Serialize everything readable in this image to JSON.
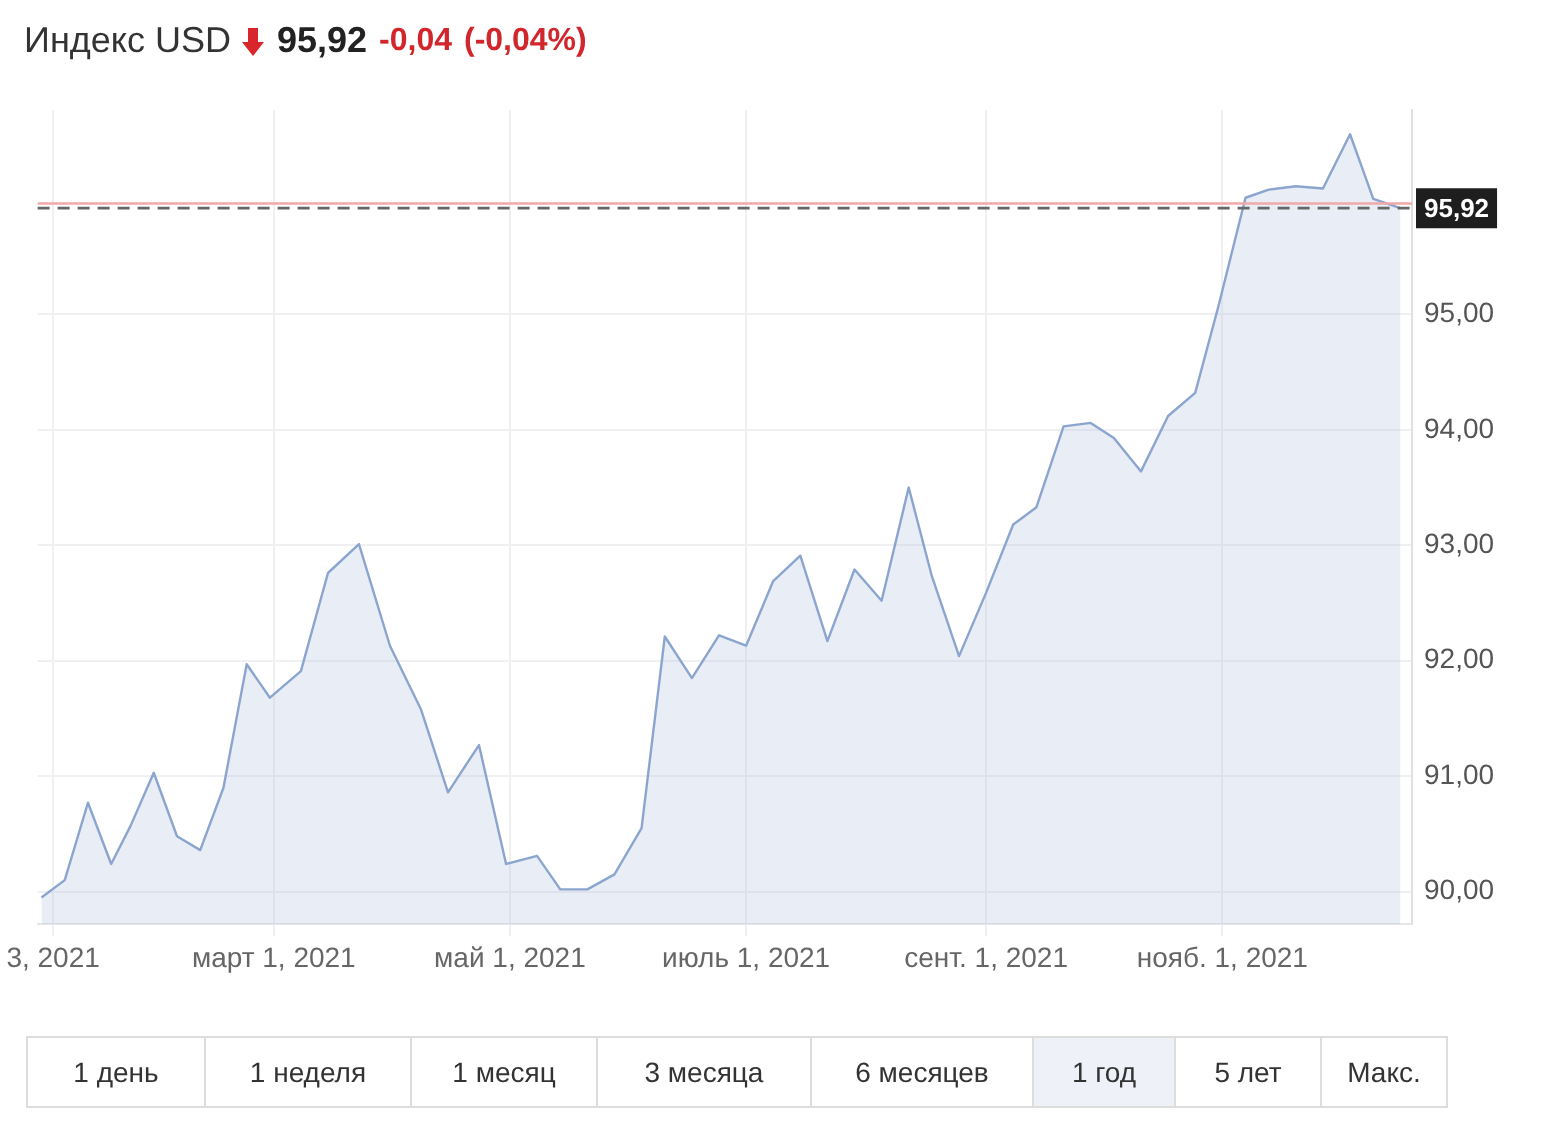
{
  "chart_data": {
    "type": "area",
    "title": "Индекс USD",
    "annotations": [
      "95,92",
      "-0,04",
      "(-0,04%)",
      "1 день",
      "1 неделя",
      "1 месяц",
      "3 месяца",
      "6 месяцев",
      "1 год",
      "5 лет",
      "Макс."
    ],
    "x": [
      "2020-12-31",
      "2021-01-06",
      "2021-01-12",
      "2021-01-18",
      "2021-01-23",
      "2021-01-29",
      "2021-02-04",
      "2021-02-10",
      "2021-02-16",
      "2021-02-22",
      "2021-02-28",
      "2021-03-08",
      "2021-03-15",
      "2021-03-23",
      "2021-03-31",
      "2021-04-08",
      "2021-04-15",
      "2021-04-23",
      "2021-04-30",
      "2021-05-08",
      "2021-05-14",
      "2021-05-21",
      "2021-05-28",
      "2021-06-04",
      "2021-06-10",
      "2021-06-17",
      "2021-06-24",
      "2021-07-01",
      "2021-07-08",
      "2021-07-15",
      "2021-07-22",
      "2021-07-29",
      "2021-08-05",
      "2021-08-12",
      "2021-08-18",
      "2021-08-25",
      "2021-09-01",
      "2021-09-08",
      "2021-09-14",
      "2021-09-21",
      "2021-09-28",
      "2021-10-04",
      "2021-10-11",
      "2021-10-18",
      "2021-10-25",
      "2021-10-31",
      "2021-11-07",
      "2021-11-13",
      "2021-11-20",
      "2021-11-27",
      "2021-12-04",
      "2021-12-10",
      "2021-12-17"
    ],
    "series": [
      {
        "color": "#8ba5cf",
        "values": [
          89.95,
          90.1,
          90.77,
          90.24,
          90.57,
          91.03,
          90.48,
          90.36,
          90.9,
          91.97,
          91.68,
          91.91,
          92.76,
          93.01,
          92.13,
          91.58,
          90.86,
          91.27,
          90.24,
          90.31,
          90.02,
          90.02,
          90.15,
          90.55,
          92.21,
          91.85,
          92.22,
          92.13,
          92.69,
          92.91,
          92.17,
          92.79,
          92.52,
          93.5,
          92.73,
          92.04,
          92.59,
          93.18,
          93.33,
          94.03,
          94.06,
          93.93,
          93.64,
          94.12,
          94.32,
          95.07,
          96.01,
          96.08,
          96.11,
          96.09,
          96.56,
          96.0,
          95.92
        ]
      }
    ],
    "xlim": [
      "2020-12-30",
      "2021-12-20"
    ],
    "xticks": [
      {
        "value": "2021-01-03",
        "label": "3, 2021"
      },
      {
        "value": "2021-03-01",
        "label": "март 1, 2021"
      },
      {
        "value": "2021-05-01",
        "label": "май 1, 2021"
      },
      {
        "value": "2021-07-01",
        "label": "июль 1, 2021"
      },
      {
        "value": "2021-09-01",
        "label": "сент. 1, 2021"
      },
      {
        "value": "2021-11-01",
        "label": "нояб. 1, 2021"
      }
    ],
    "ylim": [
      89.72,
      96.77
    ],
    "yticks": [
      {
        "value": 90,
        "label": "90,00"
      },
      {
        "value": 91,
        "label": "91,00"
      },
      {
        "value": 92,
        "label": "92,00"
      },
      {
        "value": 93,
        "label": "93,00"
      },
      {
        "value": 94,
        "label": "94,00"
      },
      {
        "value": 95,
        "label": "95,00"
      }
    ],
    "ref_lines": [
      {
        "axis": "y",
        "value": 95.96,
        "color": "#f0a8a8",
        "line_style": "solid"
      },
      {
        "axis": "y",
        "value": 95.92,
        "label": "95,92",
        "color": "#666666",
        "line_style": "dashed"
      }
    ],
    "grid": true,
    "legend": false,
    "marker": "none",
    "line_style": "solid"
  }
}
